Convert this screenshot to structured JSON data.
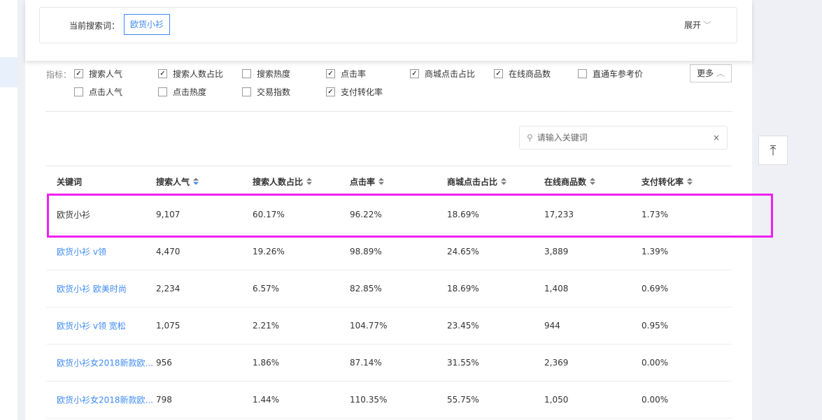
{
  "search_bar": {
    "label": "当前搜索词：",
    "term": "欧货小衫",
    "expand": "展开"
  },
  "metrics": {
    "label": "指标：",
    "more": "更多",
    "items": [
      {
        "label": "搜索人气",
        "checked": true
      },
      {
        "label": "搜索人数占比",
        "checked": true
      },
      {
        "label": "搜索热度",
        "checked": false
      },
      {
        "label": "点击率",
        "checked": true
      },
      {
        "label": "商城点击占比",
        "checked": true
      },
      {
        "label": "在线商品数",
        "checked": true
      },
      {
        "label": "直通车参考价",
        "checked": false
      },
      {
        "label": "点击人气",
        "checked": false
      },
      {
        "label": "点击热度",
        "checked": false
      },
      {
        "label": "交易指数",
        "checked": false
      },
      {
        "label": "支付转化率",
        "checked": true
      }
    ]
  },
  "filter": {
    "placeholder": "请输入关键词",
    "clear": "×"
  },
  "table": {
    "headers": [
      "关键词",
      "搜索人气",
      "搜索人数占比",
      "点击率",
      "商城点击占比",
      "在线商品数",
      "支付转化率"
    ],
    "rows": [
      [
        "欧货小衫",
        "9,107",
        "60.17%",
        "96.22%",
        "18.69%",
        "17,233",
        "1.73%"
      ],
      [
        "欧货小衫 v领",
        "4,470",
        "19.26%",
        "98.89%",
        "24.65%",
        "3,889",
        "1.39%"
      ],
      [
        "欧货小衫 欧美时尚",
        "2,234",
        "6.57%",
        "82.85%",
        "18.69%",
        "1,408",
        "0.69%"
      ],
      [
        "欧货小衫 v领 宽松",
        "1,075",
        "2.21%",
        "104.77%",
        "23.45%",
        "944",
        "0.95%"
      ],
      [
        "欧货小衫女2018新款欧...",
        "956",
        "1.86%",
        "87.14%",
        "31.55%",
        "2,369",
        "0.00%"
      ],
      [
        "欧货小衫女2018新款欧...",
        "798",
        "1.44%",
        "110.35%",
        "55.75%",
        "1,050",
        "0.00%"
      ]
    ]
  },
  "back_to_top": "↑",
  "colors": {
    "accent": "#3d8af7",
    "highlight": "#f01ff0"
  }
}
